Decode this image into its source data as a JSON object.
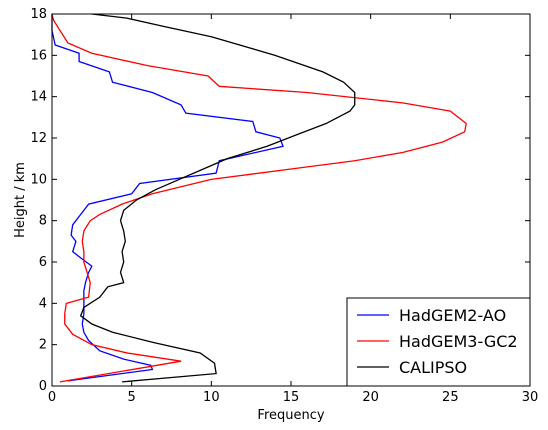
{
  "chart_data": {
    "type": "line",
    "x_label": "Frequency",
    "y_label": "Height / km",
    "xlim": [
      0,
      30
    ],
    "ylim": [
      0,
      18
    ],
    "xticks": [
      0,
      5,
      10,
      15,
      20,
      25,
      30
    ],
    "yticks": [
      0,
      2,
      4,
      6,
      8,
      10,
      12,
      14,
      16,
      18
    ],
    "legend": "lower right",
    "series": [
      {
        "name": "HadGEM2-AO",
        "color": "#0000ff",
        "x": [
          1.0,
          6.3,
          6.2,
          4.5,
          3.0,
          2.3,
          2.0,
          1.9,
          2.0,
          2.0,
          2.0,
          2.1,
          2.3,
          2.5,
          1.8,
          1.3,
          1.5,
          1.2,
          1.3,
          1.7,
          2.3,
          5.0,
          5.5,
          10.3,
          10.5,
          14.5,
          14.3,
          12.8,
          12.6,
          8.4,
          8.1,
          6.3,
          3.8,
          3.6,
          1.7,
          1.7,
          0.2,
          0,
          0
        ],
        "y": [
          0.25,
          0.8,
          1.0,
          1.3,
          1.7,
          2.2,
          2.6,
          3.0,
          3.5,
          4.0,
          4.6,
          5.0,
          5.5,
          5.8,
          6.2,
          6.5,
          7.0,
          7.3,
          7.8,
          8.2,
          8.8,
          9.3,
          9.8,
          10.3,
          10.9,
          11.6,
          12.0,
          12.3,
          12.8,
          13.2,
          13.6,
          14.2,
          14.7,
          15.2,
          15.7,
          16.1,
          16.5,
          17.2,
          18
        ]
      },
      {
        "name": "HadGEM3-GC2",
        "color": "#ff0000",
        "x": [
          0.5,
          8.1,
          4.7,
          2.5,
          1.3,
          0.8,
          0.8,
          0.9,
          2.3,
          2.4,
          2.2,
          2.0,
          2.0,
          1.9,
          2.0,
          2.4,
          3.0,
          4.4,
          6.3,
          10.0,
          15,
          19,
          22,
          24.5,
          25.9,
          26.0,
          25.0,
          22.0,
          16.0,
          10.5,
          9.8,
          6.0,
          2.5,
          1.0,
          0.5,
          0.1,
          0
        ],
        "y": [
          0.2,
          1.2,
          1.6,
          2.0,
          2.5,
          3.0,
          3.5,
          4.0,
          4.3,
          5.0,
          5.5,
          6.0,
          6.5,
          7.0,
          7.5,
          8.0,
          8.3,
          8.8,
          9.3,
          10.0,
          10.5,
          10.9,
          11.3,
          11.8,
          12.3,
          12.7,
          13.3,
          13.7,
          14.2,
          14.5,
          15.0,
          15.5,
          16.1,
          16.6,
          17.2,
          17.7,
          18
        ]
      },
      {
        "name": "CALIPSO",
        "color": "#000000",
        "x": [
          4.4,
          10.3,
          10.2,
          9.3,
          6.4,
          3.8,
          2.5,
          1.8,
          2.0,
          3.0,
          3.5,
          4.5,
          4.3,
          4.5,
          4.4,
          4.6,
          4.5,
          4.3,
          4.5,
          5.3,
          6.5,
          8.0,
          9.5,
          11.0,
          13.5,
          15.5,
          17.2,
          18.7,
          19.0,
          19.0,
          18.3,
          17.0,
          14.0,
          10.0,
          7.0,
          4.7,
          2.5
        ],
        "y": [
          0.2,
          0.6,
          1.1,
          1.6,
          2.1,
          2.6,
          3.0,
          3.4,
          3.8,
          4.3,
          4.8,
          5.0,
          5.5,
          6.0,
          6.5,
          7.0,
          7.5,
          8.0,
          8.5,
          9.0,
          9.5,
          10.0,
          10.5,
          11.0,
          11.6,
          12.2,
          12.7,
          13.3,
          13.6,
          14.2,
          14.7,
          15.2,
          16.0,
          16.9,
          17.4,
          17.8,
          18.0
        ]
      }
    ]
  }
}
